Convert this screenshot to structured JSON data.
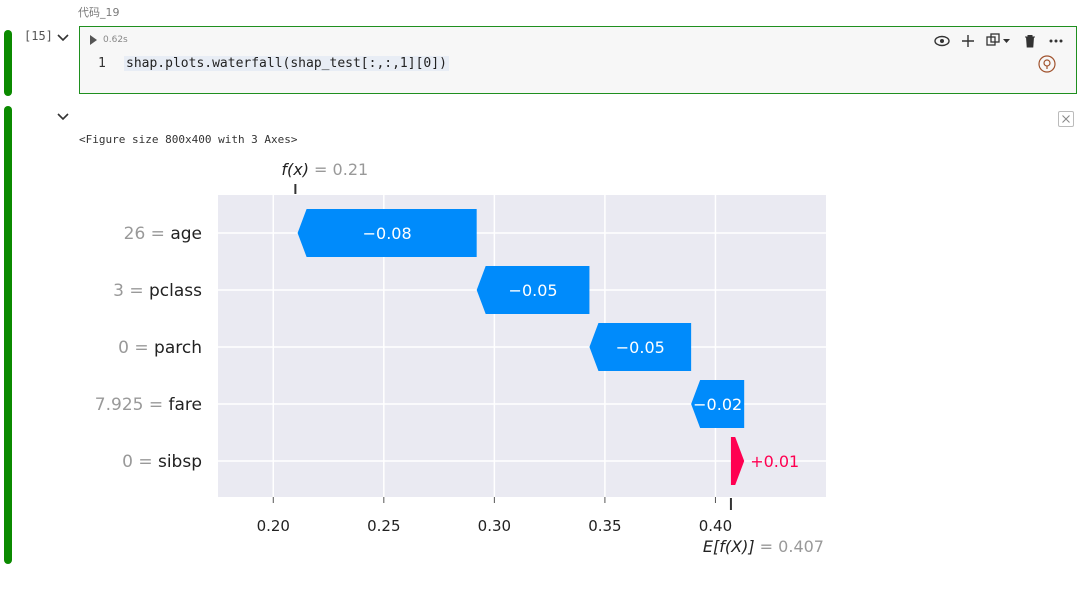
{
  "cell": {
    "title": "代码_19",
    "exec_count": "[15]",
    "run_time": "0.62s",
    "line_number": "1",
    "code": "shap.plots.waterfall(shap_test[:,:,1][0])",
    "accent": "#0b8a00"
  },
  "output": {
    "figure_text": "<Figure size 800x400 with 3 Axes>"
  },
  "chart_data": {
    "type": "waterfall",
    "fx_label": "f(x)",
    "fx_value": "= 0.21",
    "efx_label": "E[f(X)]",
    "efx_value": "= 0.407",
    "base_value": 0.407,
    "final_value": 0.21,
    "xlim": [
      0.175,
      0.45
    ],
    "xticks": [
      "0.20",
      "0.25",
      "0.30",
      "0.35",
      "0.40"
    ],
    "tick_values": [
      0.2,
      0.25,
      0.3,
      0.35,
      0.4
    ],
    "features": [
      {
        "value": "26",
        "name": "age",
        "shap": -0.08,
        "label": "−0.08",
        "start": 0.292,
        "end": 0.211
      },
      {
        "value": "3",
        "name": "pclass",
        "shap": -0.05,
        "label": "−0.05",
        "start": 0.343,
        "end": 0.292
      },
      {
        "value": "0",
        "name": "parch",
        "shap": -0.05,
        "label": "−0.05",
        "start": 0.389,
        "end": 0.343
      },
      {
        "value": "7.925",
        "name": "fare",
        "shap": -0.02,
        "label": "−0.02",
        "start": 0.413,
        "end": 0.389
      },
      {
        "value": "0",
        "name": "sibsp",
        "shap": 0.01,
        "label": "+0.01",
        "start": 0.407,
        "end": 0.413
      }
    ],
    "neg_color": "#008bfb",
    "pos_color": "#ff0051"
  }
}
